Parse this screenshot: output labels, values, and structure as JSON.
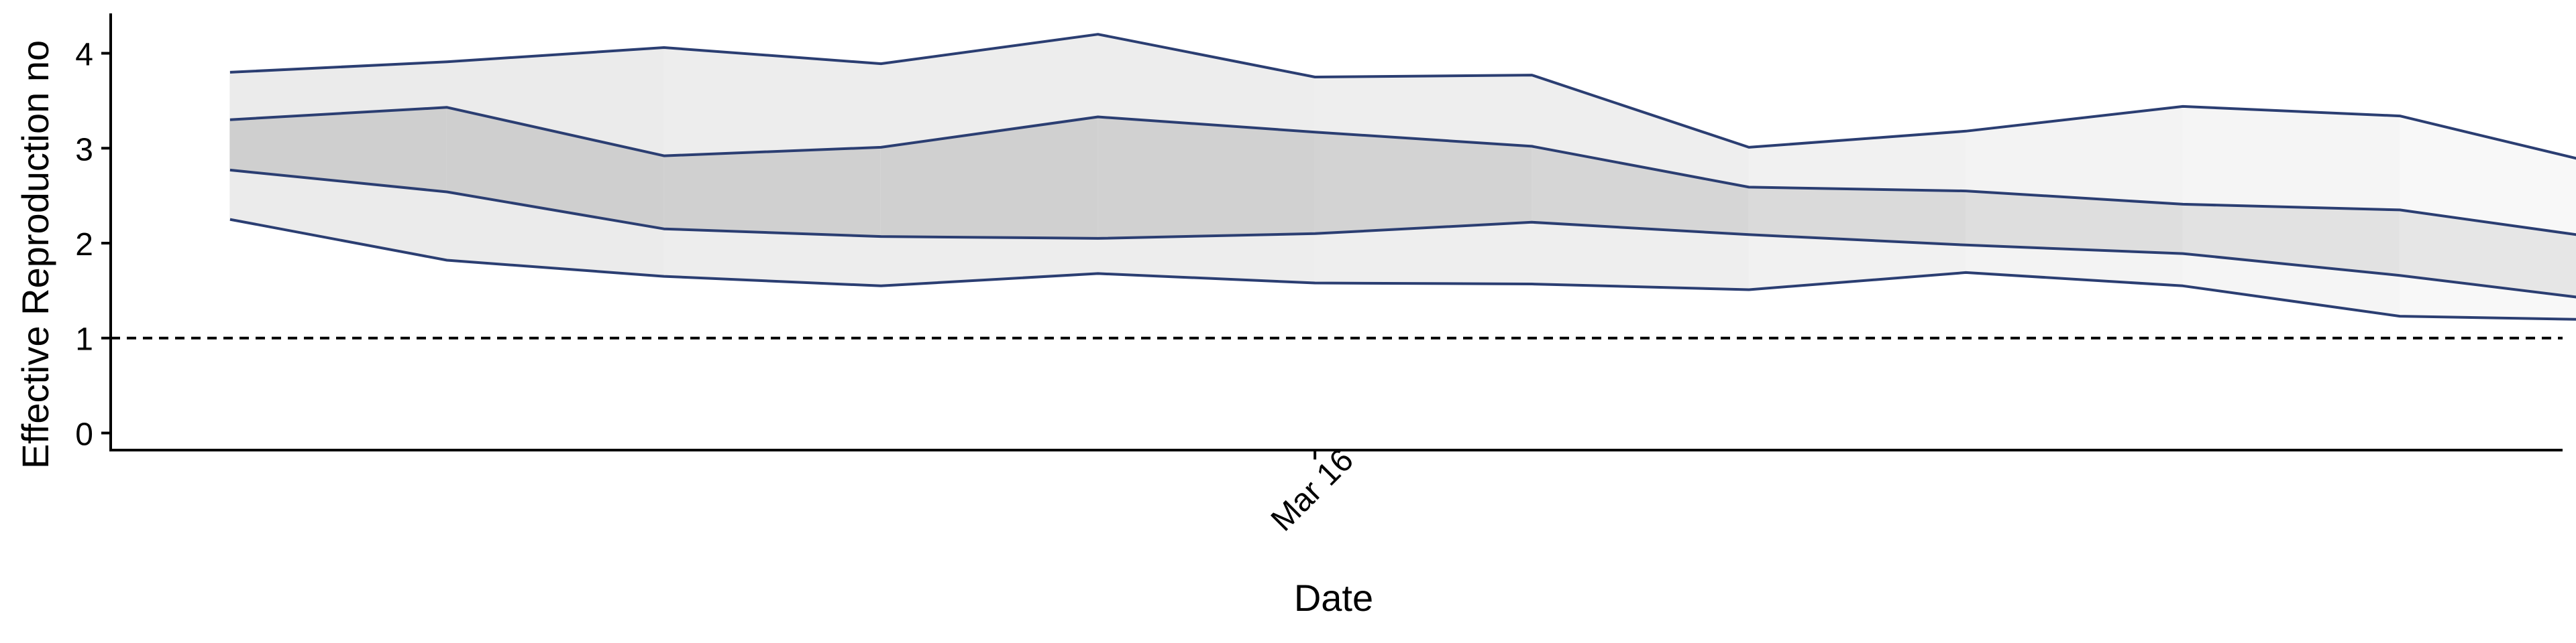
{
  "chart_data": {
    "type": "area",
    "title": "",
    "xlabel": "Date",
    "ylabel": "Effective Reproduction no",
    "x_tick_labels": [
      {
        "label": "Mar 16",
        "x_index": 5
      }
    ],
    "y_ticks": [
      0,
      1,
      2,
      3,
      4
    ],
    "ylim": [
      -0.18,
      4.42
    ],
    "xlim": [
      -0.55,
      10.75
    ],
    "grid": false,
    "legend": "none",
    "reference_line": {
      "y": 1,
      "style": "dashed"
    },
    "x": [
      0,
      1,
      2,
      3,
      4,
      5,
      6,
      7,
      8,
      9,
      10,
      11
    ],
    "series": [
      {
        "upper90": 3.8,
        "upper50": 3.3,
        "lower50": 2.77,
        "lower90": 2.25
      },
      {
        "upper90": 3.91,
        "upper50": 3.43,
        "lower50": 2.54,
        "lower90": 1.82
      },
      {
        "upper90": 4.06,
        "upper50": 2.92,
        "lower50": 2.15,
        "lower90": 1.65
      },
      {
        "upper90": 3.89,
        "upper50": 3.01,
        "lower50": 2.07,
        "lower90": 1.55
      },
      {
        "upper90": 4.2,
        "upper50": 3.33,
        "lower50": 2.05,
        "lower90": 1.68
      },
      {
        "upper90": 3.75,
        "upper50": 3.17,
        "lower50": 2.1,
        "lower90": 1.58
      },
      {
        "upper90": 3.77,
        "upper50": 3.02,
        "lower50": 2.22,
        "lower90": 1.57
      },
      {
        "upper90": 3.01,
        "upper50": 2.59,
        "lower50": 2.09,
        "lower90": 1.51
      },
      {
        "upper90": 3.18,
        "upper50": 2.55,
        "lower50": 1.98,
        "lower90": 1.69
      },
      {
        "upper90": 3.44,
        "upper50": 2.41,
        "lower50": 1.89,
        "lower90": 1.55
      },
      {
        "upper90": 3.34,
        "upper50": 2.35,
        "lower50": 1.66,
        "lower90": 1.23
      },
      {
        "upper90": 2.79,
        "upper50": 2.03,
        "lower50": 1.38,
        "lower90": 1.19
      }
    ],
    "colors": {
      "line": "#2b3e72",
      "band_outer": [
        "#ebebeb",
        "#ebebeb",
        "#ededed",
        "#ededed",
        "#ededed",
        "#eeeeee",
        "#eeeeee",
        "#f1f1f1",
        "#f3f3f3",
        "#f5f5f5",
        "#f8f8f8",
        "#fafafa"
      ],
      "band_inner": [
        "#cfcfcf",
        "#cfcfcf",
        "#d0d0d0",
        "#d0d0d0",
        "#d1d1d1",
        "#d3d3d3",
        "#d6d6d6",
        "#dadada",
        "#dedede",
        "#e2e2e2",
        "#e6e6e6",
        "#eaeaea"
      ],
      "reference": "#000000",
      "axis": "#000000"
    }
  }
}
